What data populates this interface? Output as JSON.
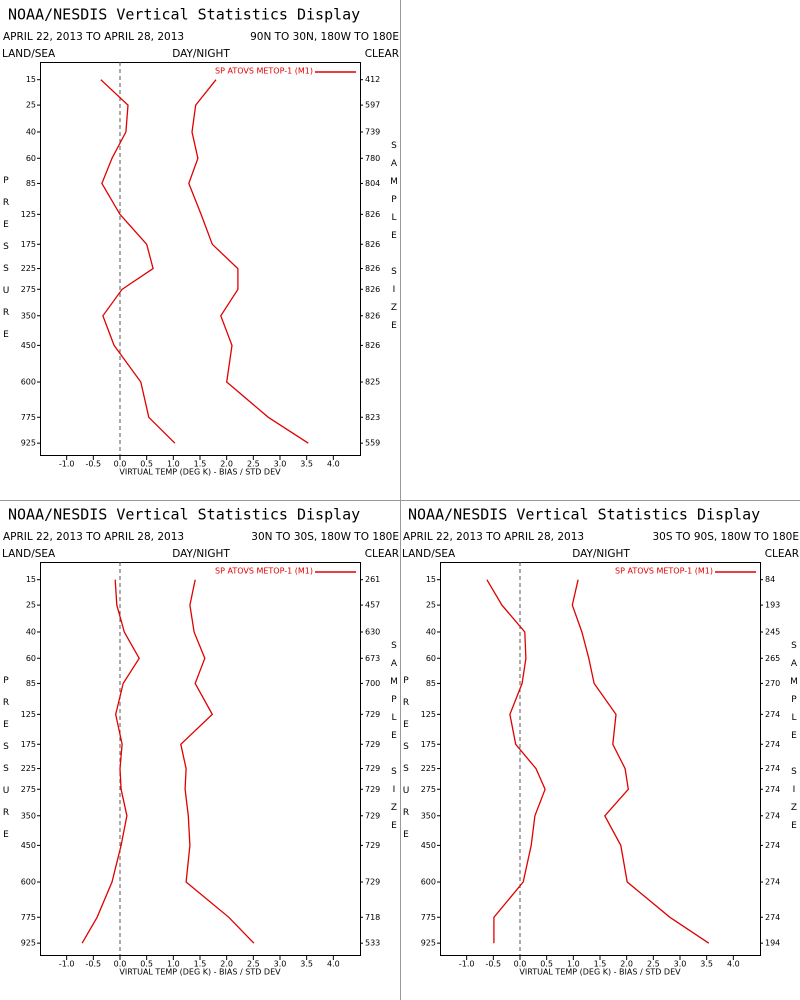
{
  "chart_data": [
    {
      "type": "line",
      "title": "NOAA/NESDIS Vertical Statistics Display",
      "subtitle": "APRIL 22, 2013 TO APRIL 28, 2013",
      "region": "90N TO 30N, 180W TO 180E",
      "left_header": "LAND/SEA",
      "center_header": "DAY/NIGHT",
      "right_header": "CLEAR",
      "xlabel": "VIRTUAL TEMP (DEG K) - BIAS / STD DEV",
      "ylabel": "PRESSURE",
      "y2label": "SAMPLE SIZE",
      "xlim": [
        -1.5,
        4.5
      ],
      "xticks": [
        {
          "value": -1,
          "label": "-1.0"
        },
        -0.5,
        {
          "value": 0,
          "label": "0.0"
        },
        0.5,
        {
          "value": 1,
          "label": "1.0"
        },
        1.5,
        {
          "value": 2,
          "label": "2.0"
        },
        2.5,
        {
          "value": 3,
          "label": "3.0"
        },
        3.5,
        {
          "value": 4,
          "label": "4.0"
        }
      ],
      "ylim": [
        1000,
        10
      ],
      "y": [
        15,
        25,
        40,
        60,
        85,
        125,
        175,
        225,
        275,
        350,
        450,
        600,
        775,
        925
      ],
      "yticks": [
        15,
        25,
        40,
        60,
        85,
        125,
        175,
        225,
        275,
        350,
        450,
        600,
        775,
        925
      ],
      "sample_size": [
        412,
        597,
        739,
        780,
        804,
        826,
        826,
        826,
        826,
        826,
        826,
        825,
        823,
        559
      ],
      "series": [
        {
          "name": "SP ATOVS METOP-1 (M1)",
          "color": "#e00000",
          "bias": [
            -0.36,
            0.15,
            0.11,
            -0.15,
            -0.34,
            0.0,
            0.5,
            0.62,
            0.04,
            -0.32,
            -0.11,
            0.39,
            0.54,
            1.03
          ],
          "std_dev": [
            1.8,
            1.42,
            1.35,
            1.46,
            1.29,
            1.52,
            1.73,
            2.21,
            2.21,
            1.89,
            2.1,
            2.0,
            2.78,
            3.53
          ]
        }
      ]
    },
    {
      "type": "line",
      "title": "NOAA/NESDIS Vertical Statistics Display",
      "subtitle": "APRIL 22, 2013 TO APRIL 28, 2013",
      "region": "30N TO 30S, 180W TO 180E",
      "left_header": "LAND/SEA",
      "center_header": "DAY/NIGHT",
      "right_header": "CLEAR",
      "xlabel": "VIRTUAL TEMP (DEG K) - BIAS / STD DEV",
      "ylabel": "PRESSURE",
      "y2label": "SAMPLE SIZE",
      "xlim": [
        -1.5,
        4.5
      ],
      "xticks": [
        {
          "value": -1,
          "label": "-1.0"
        },
        -0.5,
        {
          "value": 0,
          "label": "0.0"
        },
        0.5,
        {
          "value": 1,
          "label": "1.0"
        },
        1.5,
        {
          "value": 2,
          "label": "2.0"
        },
        2.5,
        {
          "value": 3,
          "label": "3.0"
        },
        3.5,
        {
          "value": 4,
          "label": "4.0"
        }
      ],
      "ylim": [
        1000,
        10
      ],
      "y": [
        15,
        25,
        40,
        60,
        85,
        125,
        175,
        225,
        275,
        350,
        450,
        600,
        775,
        925
      ],
      "yticks": [
        15,
        25,
        40,
        60,
        85,
        125,
        175,
        225,
        275,
        350,
        450,
        600,
        775,
        925
      ],
      "sample_size": [
        261,
        457,
        630,
        673,
        700,
        729,
        729,
        729,
        729,
        729,
        729,
        729,
        718,
        533
      ],
      "series": [
        {
          "name": "SP ATOVS METOP-1 (M1)",
          "color": "#e00000",
          "bias": [
            -0.09,
            -0.06,
            0.08,
            0.36,
            0.06,
            -0.08,
            0.04,
            0.0,
            0.02,
            0.13,
            0.02,
            -0.15,
            -0.43,
            -0.71
          ],
          "std_dev": [
            1.41,
            1.31,
            1.39,
            1.59,
            1.41,
            1.73,
            1.14,
            1.24,
            1.22,
            1.28,
            1.31,
            1.24,
            2.04,
            2.51
          ]
        }
      ]
    },
    {
      "type": "line",
      "title": "NOAA/NESDIS Vertical Statistics Display",
      "subtitle": "APRIL 22, 2013 TO APRIL 28, 2013",
      "region": "30S TO 90S, 180W TO 180E",
      "left_header": "LAND/SEA",
      "center_header": "DAY/NIGHT",
      "right_header": "CLEAR",
      "xlabel": "VIRTUAL TEMP (DEG K) - BIAS / STD DEV",
      "ylabel": "PRESSURE",
      "y2label": "SAMPLE SIZE",
      "xlim": [
        -1.5,
        4.5
      ],
      "xticks": [
        {
          "value": -1,
          "label": "-1.0"
        },
        -0.5,
        {
          "value": 0,
          "label": "0.0"
        },
        0.5,
        {
          "value": 1,
          "label": "1.0"
        },
        1.5,
        {
          "value": 2,
          "label": "2.0"
        },
        2.5,
        {
          "value": 3,
          "label": "3.0"
        },
        3.5,
        {
          "value": 4,
          "label": "4.0"
        }
      ],
      "ylim": [
        1000,
        10
      ],
      "y": [
        15,
        25,
        40,
        60,
        85,
        125,
        175,
        225,
        275,
        350,
        450,
        600,
        775,
        925
      ],
      "yticks": [
        15,
        25,
        40,
        60,
        85,
        125,
        175,
        225,
        275,
        350,
        450,
        600,
        775,
        925
      ],
      "sample_size": [
        84,
        193,
        245,
        265,
        270,
        274,
        274,
        274,
        274,
        274,
        274,
        274,
        274,
        194
      ],
      "series": [
        {
          "name": "SP ATOVS METOP-1 (M1)",
          "color": "#e00000",
          "bias": [
            -0.62,
            -0.34,
            0.09,
            0.11,
            0.04,
            -0.19,
            -0.08,
            0.3,
            0.47,
            0.28,
            0.21,
            0.06,
            -0.49,
            -0.49
          ],
          "std_dev": [
            1.09,
            0.98,
            1.16,
            1.29,
            1.39,
            1.8,
            1.74,
            1.97,
            2.03,
            1.59,
            1.89,
            2.01,
            2.81,
            3.54
          ]
        }
      ]
    }
  ]
}
